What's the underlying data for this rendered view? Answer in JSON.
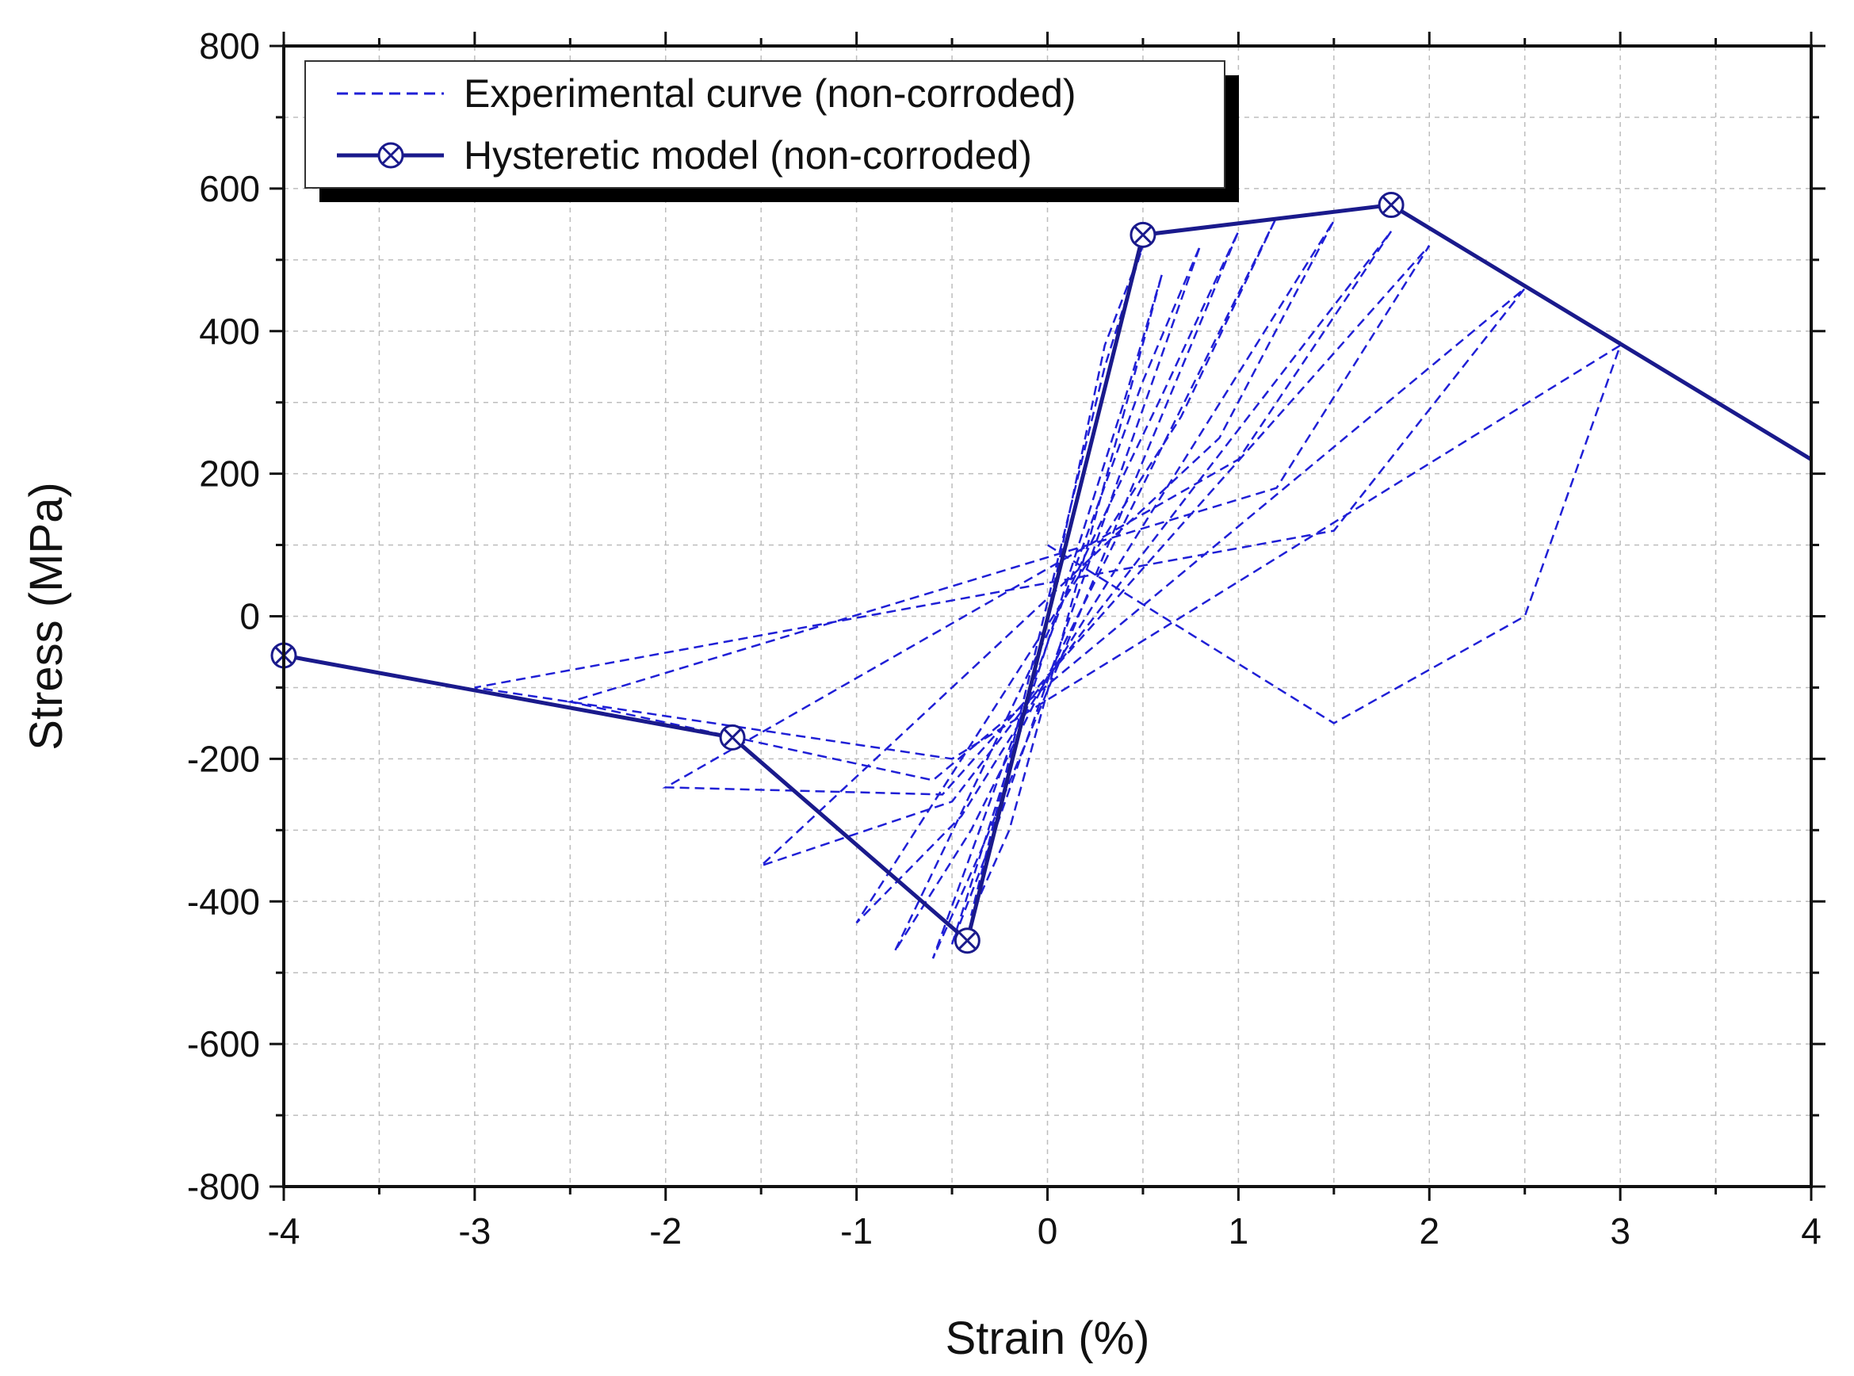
{
  "chart_data": {
    "type": "line",
    "title": "",
    "xlabel": "Strain (%)",
    "ylabel": "Stress (MPa)",
    "xlim": [
      -4,
      4
    ],
    "ylim": [
      -800,
      800
    ],
    "xticks": [
      -4,
      -3,
      -2,
      -1,
      0,
      1,
      2,
      3,
      4
    ],
    "xtick_labels": [
      "-4",
      "-3",
      "-2",
      "-1",
      "0",
      "1",
      "2",
      "3",
      "4"
    ],
    "yticks": [
      -800,
      -600,
      -400,
      -200,
      0,
      200,
      400,
      600,
      800
    ],
    "ytick_labels": [
      "-800",
      "-600",
      "-400",
      "-200",
      "0",
      "200",
      "400",
      "600",
      "800"
    ],
    "grid": true,
    "legend_position": "top-left",
    "series": [
      {
        "name": "Experimental curve (non-corroded)",
        "style": "dashed",
        "color": "#1f1fd6",
        "x": [
          0,
          0.3,
          0.5,
          0.3,
          -0.4,
          -0.2,
          0.6,
          0.4,
          -0.5,
          -0.3,
          0.8,
          0.5,
          -0.6,
          -0.35,
          1.0,
          0.6,
          -0.8,
          -0.4,
          1.2,
          0.7,
          -1.0,
          -0.45,
          1.5,
          0.9,
          -1.5,
          -0.5,
          1.8,
          1.0,
          -2.0,
          -0.55,
          2.0,
          1.2,
          -2.5,
          -0.6,
          2.5,
          1.5,
          -3.0,
          -0.5,
          3.0,
          2.5,
          1.5,
          0
        ],
        "y": [
          0,
          380,
          520,
          350,
          -420,
          -300,
          480,
          300,
          -460,
          -320,
          520,
          330,
          -480,
          -330,
          540,
          310,
          -470,
          -300,
          560,
          280,
          -430,
          -280,
          555,
          250,
          -350,
          -260,
          540,
          220,
          -240,
          -250,
          520,
          180,
          -120,
          -230,
          460,
          120,
          -100,
          -200,
          380,
          0,
          -150,
          100
        ]
      },
      {
        "name": "Hysteretic model (non-corroded)",
        "style": "solid",
        "marker": "circle-x",
        "color": "#1a1a8c",
        "x": [
          -4.0,
          -1.65,
          -0.42,
          0.5,
          1.8,
          4.0
        ],
        "y": [
          -55,
          -170,
          -455,
          535,
          577,
          220
        ],
        "marker_points": [
          {
            "x": -4.0,
            "y": -55
          },
          {
            "x": -1.65,
            "y": -170
          },
          {
            "x": -0.42,
            "y": -455
          },
          {
            "x": 0.5,
            "y": 535
          },
          {
            "x": 1.8,
            "y": 577
          }
        ]
      }
    ]
  }
}
